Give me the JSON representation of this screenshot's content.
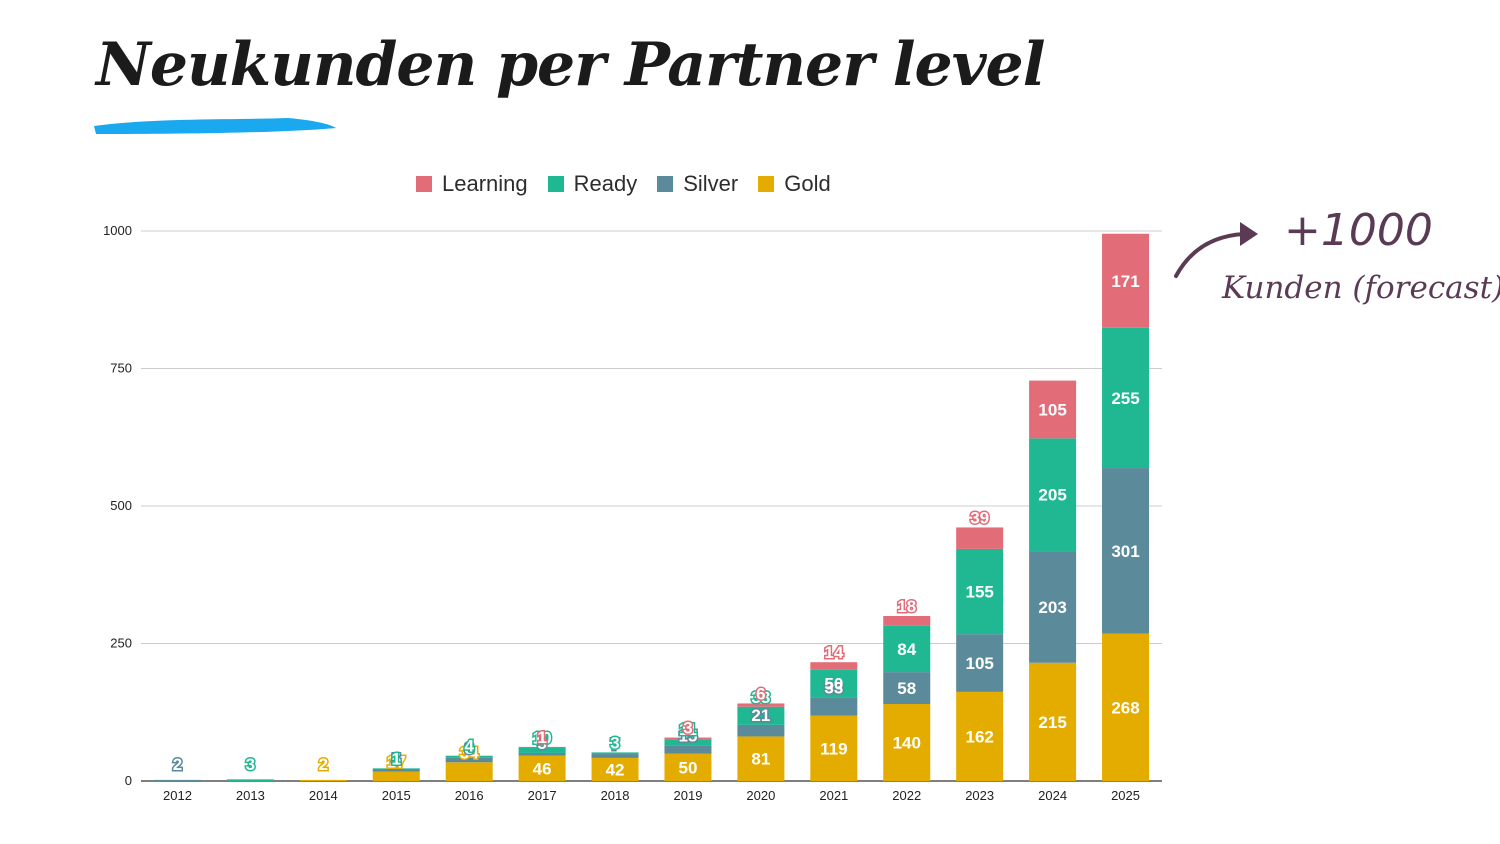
{
  "page": {
    "title": "Neukunden per Partner level",
    "accent_color": "#1aa8ef",
    "annotation": {
      "value": "+1000",
      "label": "Kunden (forecast)",
      "color": "#5a3a54"
    }
  },
  "chart_data": {
    "type": "bar",
    "stacked": true,
    "title": "",
    "xlabel": "",
    "ylabel": "",
    "categories": [
      "2012",
      "2013",
      "2014",
      "2015",
      "2016",
      "2017",
      "2018",
      "2019",
      "2020",
      "2021",
      "2022",
      "2023",
      "2024",
      "2025"
    ],
    "ylim": [
      0,
      1000
    ],
    "yticks": [
      0,
      250,
      500,
      750,
      1000
    ],
    "grid": true,
    "legend_position": "top",
    "series": [
      {
        "name": "Gold",
        "color": "#e5ac00",
        "values": [
          0,
          0,
          2,
          17,
          34,
          46,
          42,
          50,
          81,
          119,
          140,
          162,
          215,
          268
        ]
      },
      {
        "name": "Silver",
        "color": "#5b8a9b",
        "values": [
          2,
          0,
          0,
          5,
          8,
          5,
          7,
          15,
          21,
          33,
          58,
          105,
          203,
          301
        ]
      },
      {
        "name": "Ready",
        "color": "#1fb893",
        "values": [
          0,
          3,
          0,
          1,
          4,
          10,
          3,
          11,
          33,
          50,
          84,
          155,
          205,
          255
        ]
      },
      {
        "name": "Learning",
        "color": "#e26d78",
        "values": [
          0,
          0,
          0,
          0,
          0,
          1,
          0,
          3,
          6,
          14,
          18,
          39,
          105,
          171
        ]
      }
    ],
    "legend_order": [
      "Learning",
      "Ready",
      "Silver",
      "Gold"
    ]
  }
}
